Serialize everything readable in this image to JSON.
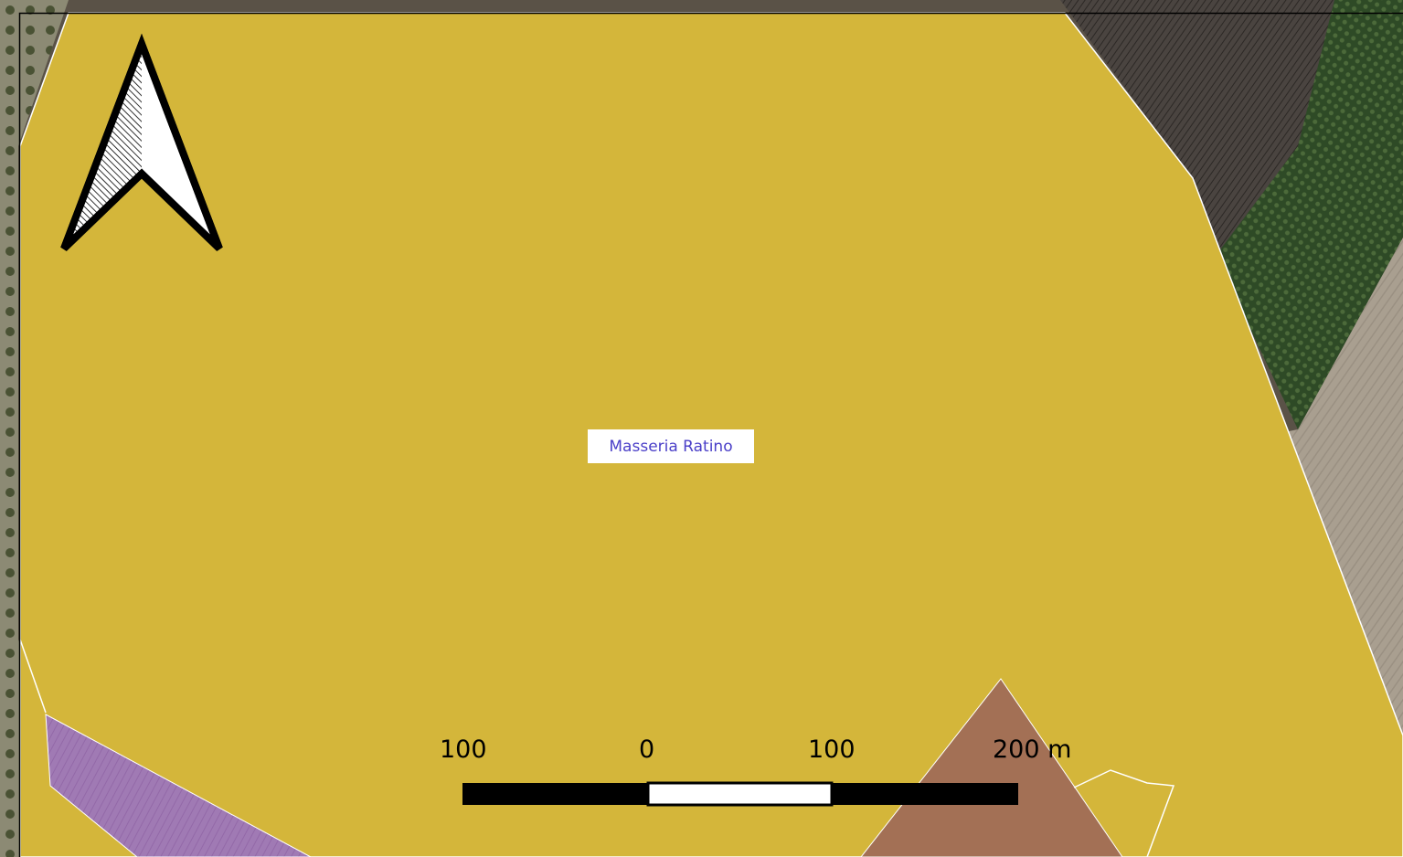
{
  "map": {
    "place_label": "Masseria Ratino",
    "scale_bar": {
      "labels": [
        "100",
        "0",
        "100",
        "200 m"
      ],
      "unit": "m",
      "segment_colors": [
        "#000000",
        "#ffffff",
        "#000000",
        "#000000"
      ]
    },
    "north_arrow": {
      "icon": "north-arrow-icon"
    },
    "colors": {
      "main_zone": "#d4b63a",
      "purple_zone": "#a97ebe",
      "brown_zone": "#a37055",
      "satellite_field_dark": "#3e3935",
      "satellite_field_light": "#a49a8c",
      "satellite_vegetation": "#2f4a26",
      "outline": "#ffffff"
    }
  }
}
